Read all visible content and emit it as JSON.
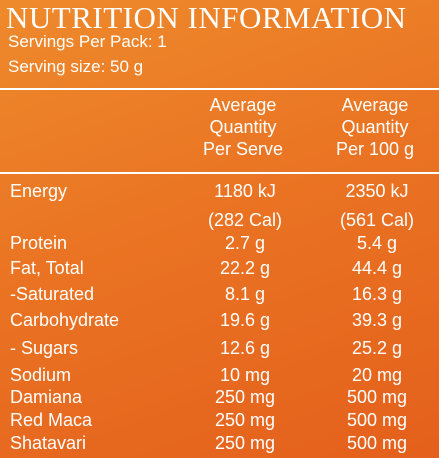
{
  "title": "NUTRITION INFORMATION",
  "servings_per_pack": "Servings Per Pack: 1",
  "serving_size": "Serving size: 50 g",
  "headers": {
    "per_serve": [
      "Average",
      "Quantity",
      "Per Serve"
    ],
    "per_100g": [
      "Average",
      "Quantity",
      "Per 100 g"
    ]
  },
  "energy": {
    "label": "Energy",
    "serve_kj": "1180 kJ",
    "serve_cal": "(282 Cal)",
    "per100_kj": "2350 kJ",
    "per100_cal": "(561 Cal)"
  },
  "rows": [
    {
      "nutrient": "Protein",
      "serve": "2.7 g",
      "per100": "5.4 g"
    },
    {
      "nutrient": "Fat, Total",
      "serve": "22.2 g",
      "per100": "44.4 g"
    },
    {
      "nutrient": "-Saturated",
      "serve": "8.1 g",
      "per100": "16.3 g"
    },
    {
      "nutrient": "Carbohydrate",
      "serve": "19.6 g",
      "per100": "39.3 g"
    },
    {
      "nutrient": "- Sugars",
      "serve": "12.6 g",
      "per100": "25.2 g"
    },
    {
      "nutrient": "Sodium",
      "serve": "10 mg",
      "per100": "20 mg"
    },
    {
      "nutrient": "Damiana",
      "serve": "250 mg",
      "per100": "500 mg"
    },
    {
      "nutrient": "Red Maca",
      "serve": "250 mg",
      "per100": "500 mg"
    },
    {
      "nutrient": "Shatavari",
      "serve": "250 mg",
      "per100": "500 mg"
    }
  ],
  "colors": {
    "background": "#ea7423",
    "text": "#ffffff"
  }
}
